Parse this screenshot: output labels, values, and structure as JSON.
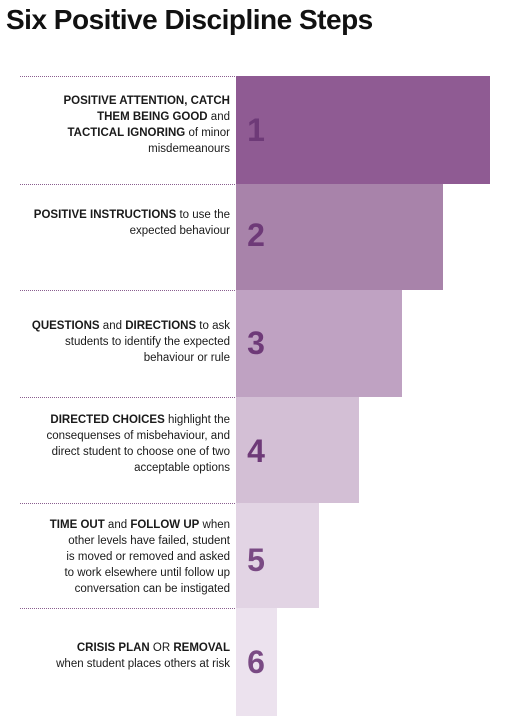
{
  "title": "Six Positive Discipline Steps",
  "colors": {
    "accent": "#6e3a78",
    "divider": "#8a5e8f",
    "bars": [
      "#8f5b93",
      "#a883aa",
      "#bfa2c2",
      "#d3bfd5",
      "#e2d4e4",
      "#ece2ee"
    ],
    "numbers": [
      "#6e3a78",
      "#6e3a78",
      "#6e3a78",
      "#6e3a78",
      "#7a4a84",
      "#7a4a84"
    ]
  },
  "steps": [
    {
      "number": "1",
      "parts": [
        {
          "text": "POSITIVE ATTENTION, CATCH",
          "bold": true
        },
        {
          "text": "THEM BEING GOOD",
          "bold": true,
          "break": true
        },
        {
          "text": " and",
          "bold": false
        },
        {
          "text": "TACTICAL IGNORING",
          "bold": true,
          "break": true
        },
        {
          "text": " of minor",
          "bold": false
        },
        {
          "text": "misdemeanours",
          "bold": false,
          "break": true
        }
      ]
    },
    {
      "number": "2",
      "parts": [
        {
          "text": "POSITIVE INSTRUCTIONS",
          "bold": true
        },
        {
          "text": " to use the",
          "bold": false
        },
        {
          "text": "expected behaviour",
          "bold": false,
          "break": true
        }
      ]
    },
    {
      "number": "3",
      "parts": [
        {
          "text": "QUESTIONS",
          "bold": true
        },
        {
          "text": " and ",
          "bold": false
        },
        {
          "text": "DIRECTIONS",
          "bold": true
        },
        {
          "text": " to ask",
          "bold": false
        },
        {
          "text": "students to identify the expected",
          "bold": false,
          "break": true
        },
        {
          "text": "behaviour or rule",
          "bold": false,
          "break": true
        }
      ]
    },
    {
      "number": "4",
      "parts": [
        {
          "text": "DIRECTED CHOICES",
          "bold": true
        },
        {
          "text": " highlight the",
          "bold": false
        },
        {
          "text": "consequenses of misbehaviour, and",
          "bold": false,
          "break": true
        },
        {
          "text": "direct student to choose one of two",
          "bold": false,
          "break": true
        },
        {
          "text": "acceptable options",
          "bold": false,
          "break": true
        }
      ]
    },
    {
      "number": "5",
      "parts": [
        {
          "text": "TIME OUT",
          "bold": true
        },
        {
          "text": " and ",
          "bold": false
        },
        {
          "text": "FOLLOW UP",
          "bold": true
        },
        {
          "text": " when",
          "bold": false
        },
        {
          "text": "other levels have failed, student",
          "bold": false,
          "break": true
        },
        {
          "text": "is moved or removed and asked",
          "bold": false,
          "break": true
        },
        {
          "text": "to work elsewhere until follow up",
          "bold": false,
          "break": true
        },
        {
          "text": "conversation can be instigated",
          "bold": false,
          "break": true
        }
      ]
    },
    {
      "number": "6",
      "parts": [
        {
          "text": "CRISIS PLAN",
          "bold": true
        },
        {
          "text": " OR ",
          "bold": false
        },
        {
          "text": "REMOVAL",
          "bold": true
        },
        {
          "text": "when student places others at risk",
          "bold": false,
          "break": true
        }
      ]
    }
  ]
}
